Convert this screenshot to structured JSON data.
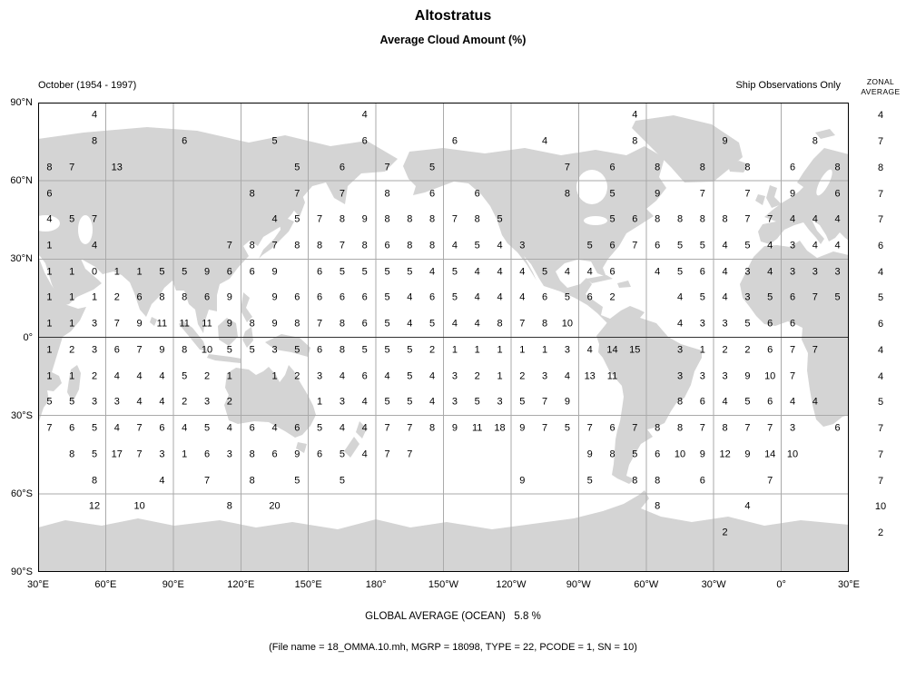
{
  "chart_data": {
    "type": "heatmap",
    "title": "Altostratus",
    "subtitle": "Average Cloud Amount (%)",
    "period_label": "October (1954 - 1997)",
    "source_label": "Ship Observations Only",
    "grid_rows": 18,
    "grid_cols": 36,
    "cell_size_degrees": 10,
    "x_tick_labels": [
      "30°E",
      "60°E",
      "90°E",
      "120°E",
      "150°E",
      "180°",
      "150°W",
      "120°W",
      "90°W",
      "60°W",
      "30°W",
      "0°",
      "30°E"
    ],
    "y_tick_labels": [
      "90°N",
      "60°N",
      "30°N",
      "0°",
      "30°S",
      "60°S",
      "90°S"
    ],
    "zonal_header": [
      "ZONAL",
      "AVERAGE"
    ],
    "zonal_averages": [
      "4",
      "7",
      "8",
      "7",
      "7",
      "6",
      "4",
      "5",
      "6",
      "4",
      "4",
      "5",
      "7",
      "7",
      "7",
      "10",
      "2",
      ""
    ],
    "values": [
      [
        "",
        "",
        "4",
        "",
        "",
        "",
        "",
        "",
        "",
        "",
        "",
        "",
        "",
        "",
        "4",
        "",
        "",
        "",
        "",
        "",
        "",
        "",
        "",
        "",
        "",
        "",
        "4",
        "",
        "",
        "",
        "",
        "",
        "",
        "",
        "",
        ""
      ],
      [
        "",
        "",
        "8",
        "",
        "",
        "",
        "6",
        "",
        "",
        "",
        "5",
        "",
        "",
        "",
        "6",
        "",
        "",
        "",
        "6",
        "",
        "",
        "",
        "4",
        "",
        "",
        "",
        "8",
        "",
        "",
        "",
        "9",
        "",
        "",
        "",
        "8",
        ""
      ],
      [
        "8",
        "7",
        "",
        "13",
        "",
        "",
        "",
        "",
        "",
        "",
        "",
        "5",
        "",
        "6",
        "",
        "7",
        "",
        "5",
        "",
        "",
        "",
        "",
        "",
        "7",
        "",
        "6",
        "",
        "8",
        "",
        "8",
        "",
        "8",
        "",
        "6",
        "",
        "8"
      ],
      [
        "6",
        "",
        "",
        "",
        "",
        "",
        "",
        "",
        "",
        "8",
        "",
        "7",
        "",
        "7",
        "",
        "8",
        "",
        "6",
        "",
        "6",
        "",
        "",
        "",
        "8",
        "",
        "5",
        "",
        "9",
        "",
        "7",
        "",
        "7",
        "",
        "9",
        "",
        "6"
      ],
      [
        "4",
        "5",
        "7",
        "",
        "",
        "",
        "",
        "",
        "",
        "",
        "4",
        "5",
        "7",
        "8",
        "9",
        "8",
        "8",
        "8",
        "7",
        "8",
        "5",
        "",
        "",
        "",
        "",
        "5",
        "6",
        "8",
        "8",
        "8",
        "8",
        "7",
        "7",
        "4",
        "4",
        "4"
      ],
      [
        "1",
        "",
        "4",
        "",
        "",
        "",
        "",
        "",
        "7",
        "8",
        "7",
        "8",
        "8",
        "7",
        "8",
        "6",
        "8",
        "8",
        "4",
        "5",
        "4",
        "3",
        "",
        "",
        "5",
        "6",
        "7",
        "6",
        "5",
        "5",
        "4",
        "5",
        "4",
        "3",
        "4",
        "4"
      ],
      [
        "1",
        "1",
        "0",
        "1",
        "1",
        "5",
        "5",
        "9",
        "6",
        "6",
        "9",
        "",
        "6",
        "5",
        "5",
        "5",
        "5",
        "4",
        "5",
        "4",
        "4",
        "4",
        "5",
        "4",
        "4",
        "6",
        "",
        "4",
        "5",
        "6",
        "4",
        "3",
        "4",
        "3",
        "3",
        "3"
      ],
      [
        "1",
        "1",
        "1",
        "2",
        "6",
        "8",
        "8",
        "6",
        "9",
        "",
        "9",
        "6",
        "6",
        "6",
        "6",
        "5",
        "4",
        "6",
        "5",
        "4",
        "4",
        "4",
        "6",
        "5",
        "6",
        "2",
        "",
        "",
        "4",
        "5",
        "4",
        "3",
        "5",
        "6",
        "7",
        "5"
      ],
      [
        "1",
        "1",
        "3",
        "7",
        "9",
        "11",
        "11",
        "11",
        "9",
        "8",
        "9",
        "8",
        "7",
        "8",
        "6",
        "5",
        "4",
        "5",
        "4",
        "4",
        "8",
        "7",
        "8",
        "10",
        "",
        "",
        "",
        "",
        "4",
        "3",
        "3",
        "5",
        "6",
        "6",
        "",
        ""
      ],
      [
        "1",
        "2",
        "3",
        "6",
        "7",
        "9",
        "8",
        "10",
        "5",
        "5",
        "3",
        "5",
        "6",
        "8",
        "5",
        "5",
        "5",
        "2",
        "1",
        "1",
        "1",
        "1",
        "1",
        "3",
        "4",
        "14",
        "15",
        "",
        "3",
        "1",
        "2",
        "2",
        "6",
        "7",
        "7",
        ""
      ],
      [
        "1",
        "1",
        "2",
        "4",
        "4",
        "4",
        "5",
        "2",
        "1",
        "",
        "1",
        "2",
        "3",
        "4",
        "6",
        "4",
        "5",
        "4",
        "3",
        "2",
        "1",
        "2",
        "3",
        "4",
        "13",
        "11",
        "",
        "",
        "3",
        "3",
        "3",
        "9",
        "10",
        "7",
        "",
        ""
      ],
      [
        "5",
        "5",
        "3",
        "3",
        "4",
        "4",
        "2",
        "3",
        "2",
        "",
        "",
        "",
        "1",
        "3",
        "4",
        "5",
        "5",
        "4",
        "3",
        "5",
        "3",
        "5",
        "7",
        "9",
        "",
        "",
        "",
        "",
        "8",
        "6",
        "4",
        "5",
        "6",
        "4",
        "4",
        ""
      ],
      [
        "7",
        "6",
        "5",
        "4",
        "7",
        "6",
        "4",
        "5",
        "4",
        "6",
        "4",
        "6",
        "5",
        "4",
        "4",
        "7",
        "7",
        "8",
        "9",
        "11",
        "18",
        "9",
        "7",
        "5",
        "7",
        "6",
        "7",
        "8",
        "8",
        "7",
        "8",
        "7",
        "7",
        "3",
        "",
        "6"
      ],
      [
        "",
        "8",
        "5",
        "17",
        "7",
        "3",
        "1",
        "6",
        "3",
        "8",
        "6",
        "9",
        "6",
        "5",
        "4",
        "7",
        "7",
        "",
        "",
        "",
        "",
        "",
        "",
        "",
        "9",
        "8",
        "5",
        "6",
        "10",
        "9",
        "12",
        "9",
        "14",
        "10",
        "",
        ""
      ],
      [
        "",
        "",
        "8",
        "",
        "",
        "4",
        "",
        "7",
        "",
        "8",
        "",
        "5",
        "",
        "5",
        "",
        "",
        "",
        "",
        "",
        "",
        "",
        "9",
        "",
        "",
        "5",
        "",
        "8",
        "8",
        "",
        "6",
        "",
        "",
        "7",
        "",
        "",
        ""
      ],
      [
        "",
        "",
        "12",
        "",
        "10",
        "",
        "",
        "",
        "8",
        "",
        "20",
        "",
        "",
        "",
        "",
        "",
        "",
        "",
        "",
        "",
        "",
        "",
        "",
        "",
        "",
        "",
        "",
        "8",
        "",
        "",
        "",
        "4",
        "",
        "",
        "",
        ""
      ],
      [
        "",
        "",
        "",
        "",
        "",
        "",
        "",
        "",
        "",
        "",
        "",
        "",
        "",
        "",
        "",
        "",
        "",
        "",
        "",
        "",
        "",
        "",
        "",
        "",
        "",
        "",
        "",
        "",
        "",
        "",
        "2",
        "",
        "",
        "",
        "",
        ""
      ],
      [
        "",
        "",
        "",
        "",
        "",
        "",
        "",
        "",
        "",
        "",
        "",
        "",
        "",
        "",
        "",
        "",
        "",
        "",
        "",
        "",
        "",
        "",
        "",
        "",
        "",
        "",
        "",
        "",
        "",
        "",
        "",
        "",
        "",
        "",
        "",
        ""
      ]
    ],
    "global_average_text": "GLOBAL AVERAGE (OCEAN)   5.8 %",
    "global_average_value": 5.8,
    "file_info": "(File name = 18_OMMA.10.mh, MGRP = 18098, TYPE = 22, PCODE = 1, SN = 10)"
  }
}
